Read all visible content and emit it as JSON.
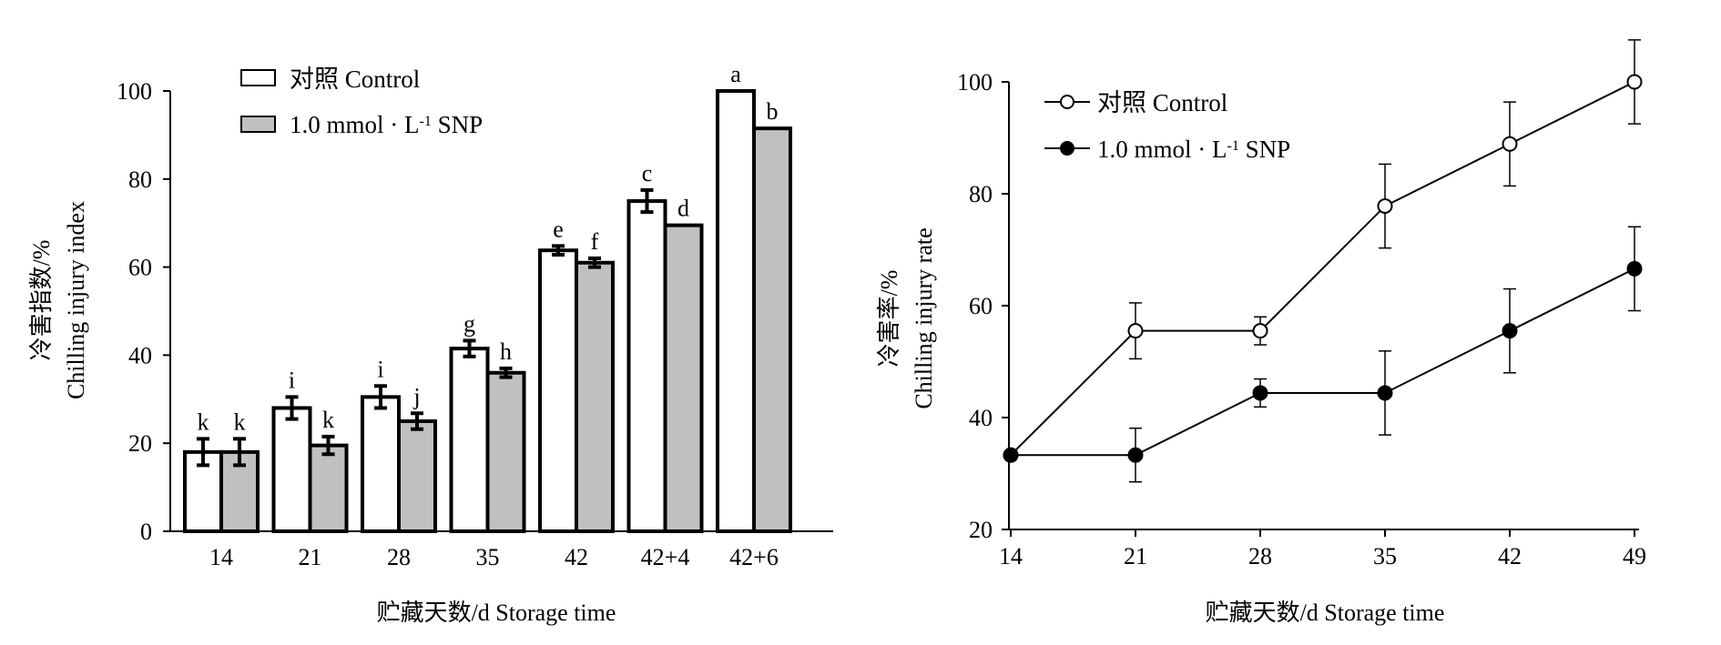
{
  "chart_data": [
    {
      "type": "bar",
      "categories": [
        "14",
        "21",
        "28",
        "35",
        "42",
        "42+4",
        "42+6"
      ],
      "series": [
        {
          "name": "对照  Control",
          "color": "#ffffff",
          "values": [
            18,
            28,
            30.5,
            41.5,
            63.8,
            75,
            100
          ],
          "errors": [
            3,
            2.5,
            2.5,
            1.8,
            1.0,
            2.5,
            0
          ],
          "letters": [
            "k",
            "i",
            "i",
            "g",
            "e",
            "c",
            "a"
          ]
        },
        {
          "name": "1.0 mmol · L",
          "name_sup": "-1",
          "name_suffix": " SNP",
          "color": "#c0c0c0",
          "values": [
            18,
            19.5,
            25,
            36,
            61,
            69.5,
            91.5
          ],
          "errors": [
            3,
            2.0,
            1.8,
            1.0,
            1.0,
            0,
            0
          ],
          "letters": [
            "k",
            "k",
            "j",
            "h",
            "f",
            "d",
            "b"
          ]
        }
      ],
      "ylabel_cn": "冷害指数/%",
      "ylabel_en": "Chilling injury index",
      "xlabel": "贮藏天数/d Storage time",
      "ylim": [
        0,
        100
      ],
      "yticks": [
        0,
        20,
        40,
        60,
        80,
        100
      ]
    },
    {
      "type": "line",
      "x": [
        14,
        21,
        28,
        35,
        42,
        49
      ],
      "series": [
        {
          "name": "对照  Control",
          "marker": "open-circle",
          "values": [
            33.3,
            55.5,
            55.5,
            77.8,
            88.9,
            100
          ],
          "errors": [
            0,
            5,
            2.5,
            7.5,
            7.5,
            7.5
          ]
        },
        {
          "name": "1.0 mmol · L",
          "name_sup": "-1",
          "name_suffix": " SNP",
          "marker": "filled-circle",
          "values": [
            33.3,
            33.3,
            44.4,
            44.4,
            55.5,
            66.6
          ],
          "errors": [
            0,
            4.8,
            2.5,
            7.5,
            7.5,
            7.5
          ]
        }
      ],
      "ylabel_cn": "冷害率/%",
      "ylabel_en": "Chilling injury rate",
      "xlabel": "贮藏天数/d Storage time",
      "ylim": [
        20,
        100
      ],
      "yticks": [
        20,
        40,
        60,
        80,
        100
      ],
      "xticks": [
        "14",
        "21",
        "28",
        "35",
        "42",
        "49"
      ]
    }
  ]
}
